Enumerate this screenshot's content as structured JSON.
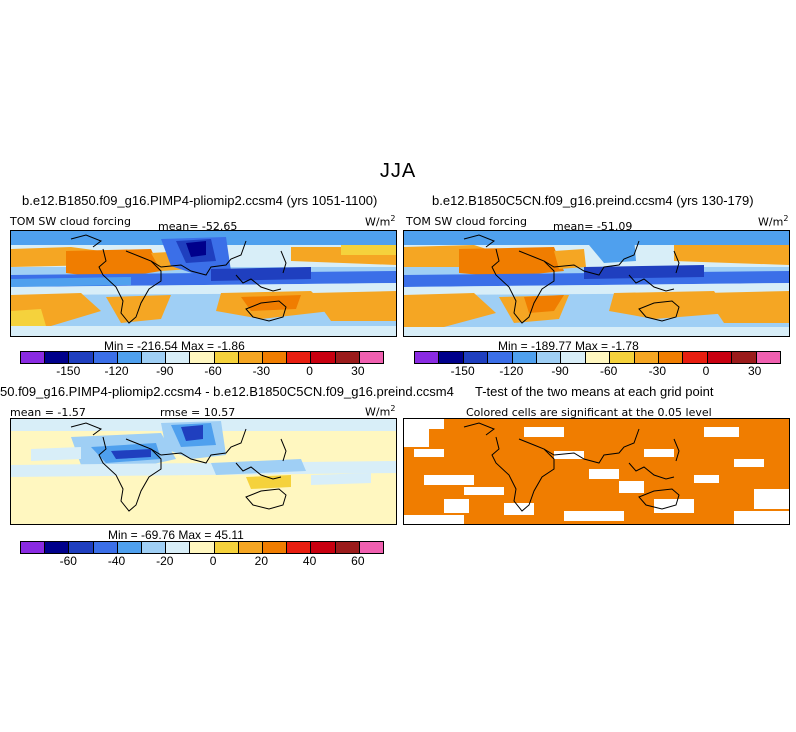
{
  "season": "JJA",
  "panels": {
    "top_left": {
      "title": "b.e12.B1850.f09_g16.PIMP4-pliomip2.ccsm4 (yrs 1051-1100)",
      "variable": "TOM SW cloud forcing",
      "mean": "mean= -52.65",
      "units": "W/m",
      "units_sup": "2",
      "minmax": "Min = -216.54 Max = -1.86"
    },
    "top_right": {
      "title": "b.e12.B1850C5CN.f09_g16.preind.ccsm4 (yrs 130-179)",
      "variable": "TOM SW cloud forcing",
      "mean": "mean= -51.09",
      "units": "W/m",
      "units_sup": "2",
      "minmax": "Min = -189.77 Max = -1.78"
    },
    "bottom_left": {
      "title": "50.f09_g16.PIMP4-pliomip2.ccsm4 - b.e12.B1850C5CN.f09_g16.preind.ccsm4",
      "mean": "mean = -1.57",
      "rmse": "rmse = 10.57",
      "units": "W/m",
      "units_sup": "2",
      "minmax": "Min = -69.76 Max = 45.11"
    },
    "bottom_right": {
      "title": "T-test of the two means at each grid point",
      "subtitle": "Colored cells are significant at the 0.05 level"
    }
  },
  "colorbars": {
    "field": {
      "colors": [
        "#8a2be2",
        "#00008b",
        "#1f3fbf",
        "#3b6fe8",
        "#4fa0ee",
        "#9fcff5",
        "#d8eef8",
        "#fff7c0",
        "#f5d23c",
        "#f5a623",
        "#f07d00",
        "#e81e10",
        "#c80010",
        "#9b1b1b",
        "#f060b0"
      ],
      "ticks": [
        "-150",
        "-120",
        "-90",
        "-60",
        "-30",
        "0",
        "30"
      ]
    },
    "diff": {
      "colors": [
        "#8a2be2",
        "#00008b",
        "#1f3fbf",
        "#3b6fe8",
        "#4fa0ee",
        "#9fcff5",
        "#d8eef8",
        "#fff7c0",
        "#f5d23c",
        "#f5a623",
        "#f07d00",
        "#e81e10",
        "#c80010",
        "#9b1b1b",
        "#f060b0"
      ],
      "ticks": [
        "-60",
        "-40",
        "-20",
        "0",
        "20",
        "40",
        "60"
      ]
    }
  }
}
